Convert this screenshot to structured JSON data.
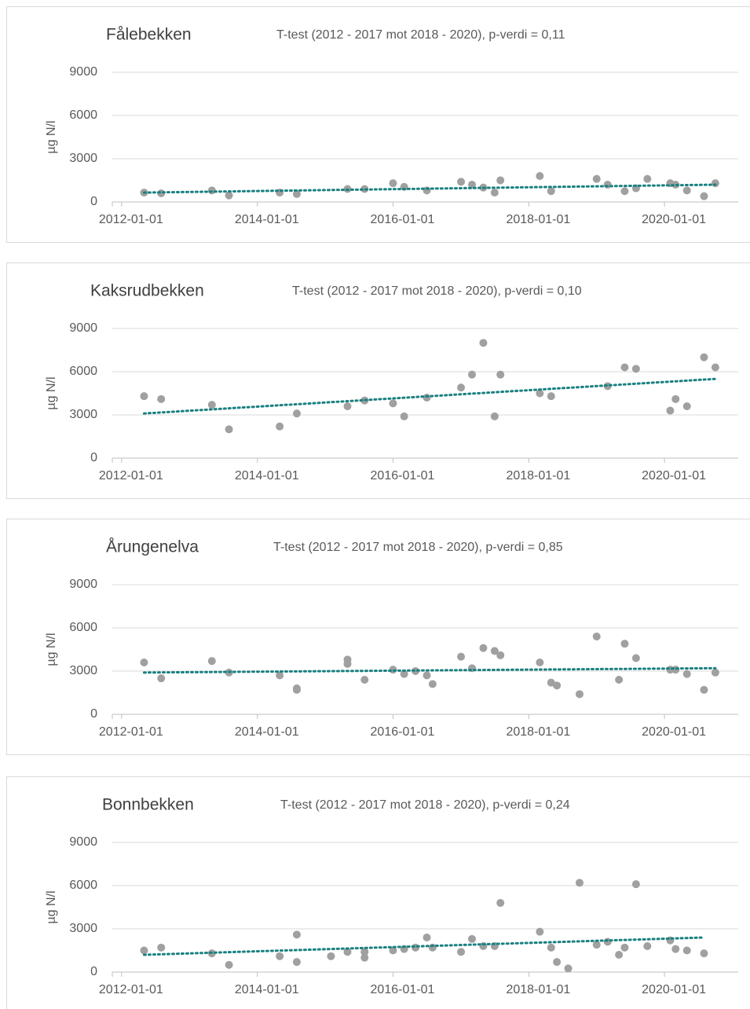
{
  "chart_data": [
    {
      "type": "scatter",
      "title": "Fålebekken",
      "annotation": "T-test (2012 - 2017 mot 2018 - 2020), p-verdi = 0,11",
      "y_label": "µg N/l",
      "x": [
        "2012-05-01",
        "2012-08-01",
        "2013-05-01",
        "2013-08-01",
        "2014-05-01",
        "2014-08-01",
        "2015-05-01",
        "2015-08-01",
        "2016-01-01",
        "2016-03-01",
        "2016-07-01",
        "2017-01-01",
        "2017-03-01",
        "2017-05-01",
        "2017-07-01",
        "2017-08-01",
        "2018-03-01",
        "2018-05-01",
        "2019-01-01",
        "2019-03-01",
        "2019-06-01",
        "2019-08-01",
        "2019-10-01",
        "2020-02-01",
        "2020-03-01",
        "2020-05-01",
        "2020-08-01",
        "2020-10-01"
      ],
      "values": [
        650,
        600,
        800,
        450,
        650,
        550,
        900,
        900,
        1300,
        1050,
        800,
        1400,
        1200,
        1000,
        650,
        1500,
        1800,
        750,
        1600,
        1200,
        750,
        950,
        1600,
        1300,
        1200,
        800,
        400,
        1300
      ],
      "color": "#a0a0a0",
      "trendline": {
        "x": [
          "2012-05-01",
          "2020-10-01"
        ],
        "values": [
          650,
          1200
        ],
        "color": "#1a8080"
      },
      "xlim": [
        "2011-11-12",
        "2021-02-01"
      ],
      "xticks": [
        "2012-01-01",
        "2014-01-01",
        "2016-01-01",
        "2018-01-01",
        "2020-01-01"
      ],
      "ylim": [
        0,
        9000
      ],
      "yticks": [
        0,
        3000,
        6000,
        9000
      ],
      "grid": true
    },
    {
      "type": "scatter",
      "title": "Kaksrudbekken",
      "annotation": "T-test (2012 - 2017 mot 2018 - 2020), p-verdi = 0,10",
      "y_label": "µg N/l",
      "x": [
        "2012-05-01",
        "2012-08-01",
        "2013-05-01",
        "2013-08-01",
        "2014-05-01",
        "2014-08-01",
        "2015-05-01",
        "2015-08-01",
        "2016-01-01",
        "2016-03-01",
        "2016-07-01",
        "2017-01-01",
        "2017-03-01",
        "2017-05-01",
        "2017-07-01",
        "2017-08-01",
        "2018-03-01",
        "2018-05-01",
        "2019-03-01",
        "2019-06-01",
        "2019-08-01",
        "2020-02-01",
        "2020-03-01",
        "2020-05-01",
        "2020-08-01",
        "2020-10-01"
      ],
      "values": [
        4300,
        4100,
        3700,
        2000,
        2200,
        3100,
        3600,
        4000,
        3800,
        2900,
        4200,
        4900,
        5800,
        8000,
        2900,
        5800,
        4500,
        4300,
        5000,
        6300,
        6200,
        3300,
        4100,
        3600,
        7000,
        6300
      ],
      "color": "#a0a0a0",
      "trendline": {
        "x": [
          "2012-05-01",
          "2020-10-01"
        ],
        "values": [
          3100,
          5500
        ],
        "color": "#1a8080"
      },
      "xlim": [
        "2011-11-12",
        "2021-02-01"
      ],
      "xticks": [
        "2012-01-01",
        "2014-01-01",
        "2016-01-01",
        "2018-01-01",
        "2020-01-01"
      ],
      "ylim": [
        0,
        9000
      ],
      "yticks": [
        0,
        3000,
        6000,
        9000
      ],
      "grid": true
    },
    {
      "type": "scatter",
      "title": "Årungenelva",
      "annotation": "T-test (2012 - 2017 mot 2018 - 2020), p-verdi = 0,85",
      "y_label": "µg N/l",
      "x": [
        "2012-05-01",
        "2012-08-01",
        "2013-05-01",
        "2013-08-01",
        "2014-05-01",
        "2014-08-01",
        "2014-08-01",
        "2015-05-01",
        "2015-05-01",
        "2015-08-01",
        "2016-01-01",
        "2016-03-01",
        "2016-05-01",
        "2016-07-01",
        "2016-08-01",
        "2017-01-01",
        "2017-03-01",
        "2017-05-01",
        "2017-07-01",
        "2017-08-01",
        "2018-03-01",
        "2018-05-01",
        "2018-06-01",
        "2018-10-01",
        "2019-01-01",
        "2019-05-01",
        "2019-06-01",
        "2019-08-01",
        "2020-02-01",
        "2020-03-01",
        "2020-05-01",
        "2020-08-01",
        "2020-10-01"
      ],
      "values": [
        3600,
        2500,
        3700,
        2900,
        2700,
        1800,
        1700,
        3800,
        3500,
        2400,
        3100,
        2800,
        3000,
        2700,
        2100,
        4000,
        3200,
        4600,
        4400,
        4100,
        3600,
        2200,
        2000,
        1400,
        5400,
        2400,
        4900,
        3900,
        3100,
        3100,
        2800,
        1700,
        2900
      ],
      "color": "#a0a0a0",
      "trendline": {
        "x": [
          "2012-05-01",
          "2020-10-01"
        ],
        "values": [
          2900,
          3200
        ],
        "color": "#1a8080"
      },
      "xlim": [
        "2011-11-12",
        "2021-02-01"
      ],
      "xticks": [
        "2012-01-01",
        "2014-01-01",
        "2016-01-01",
        "2018-01-01",
        "2020-01-01"
      ],
      "ylim": [
        0,
        9000
      ],
      "yticks": [
        0,
        3000,
        6000,
        9000
      ],
      "grid": true
    },
    {
      "type": "scatter",
      "title": "Bonnbekken",
      "annotation": "T-test (2012 - 2017 mot 2018 - 2020), p-verdi = 0,24",
      "y_label": "µg N/l",
      "x": [
        "2012-05-01",
        "2012-08-01",
        "2013-05-01",
        "2013-08-01",
        "2014-05-01",
        "2014-08-01",
        "2014-08-01",
        "2015-02-01",
        "2015-05-01",
        "2015-08-01",
        "2015-08-01",
        "2016-01-01",
        "2016-03-01",
        "2016-05-01",
        "2016-07-01",
        "2016-08-01",
        "2017-01-01",
        "2017-03-01",
        "2017-05-01",
        "2017-07-01",
        "2017-08-01",
        "2018-03-01",
        "2018-05-01",
        "2018-06-01",
        "2018-08-01",
        "2018-10-01",
        "2019-01-01",
        "2019-03-01",
        "2019-05-01",
        "2019-06-01",
        "2019-08-01",
        "2019-10-01",
        "2020-02-01",
        "2020-03-01",
        "2020-05-01",
        "2020-08-01"
      ],
      "values": [
        1500,
        1700,
        1300,
        500,
        1100,
        2600,
        700,
        1100,
        1400,
        1400,
        1000,
        1500,
        1600,
        1700,
        2400,
        1700,
        1400,
        2300,
        1800,
        1800,
        4800,
        2800,
        1700,
        700,
        250,
        6200,
        1900,
        2100,
        1200,
        1700,
        6100,
        1800,
        2200,
        1600,
        1500,
        1300
      ],
      "color": "#a0a0a0",
      "trendline": {
        "x": [
          "2012-05-01",
          "2020-08-01"
        ],
        "values": [
          1200,
          2400
        ],
        "color": "#1a8080"
      },
      "xlim": [
        "2011-11-12",
        "2021-02-01"
      ],
      "xticks": [
        "2012-01-01",
        "2014-01-01",
        "2016-01-01",
        "2018-01-01",
        "2020-01-01"
      ],
      "ylim": [
        0,
        9000
      ],
      "yticks": [
        0,
        3000,
        6000,
        9000
      ],
      "grid": true
    }
  ]
}
